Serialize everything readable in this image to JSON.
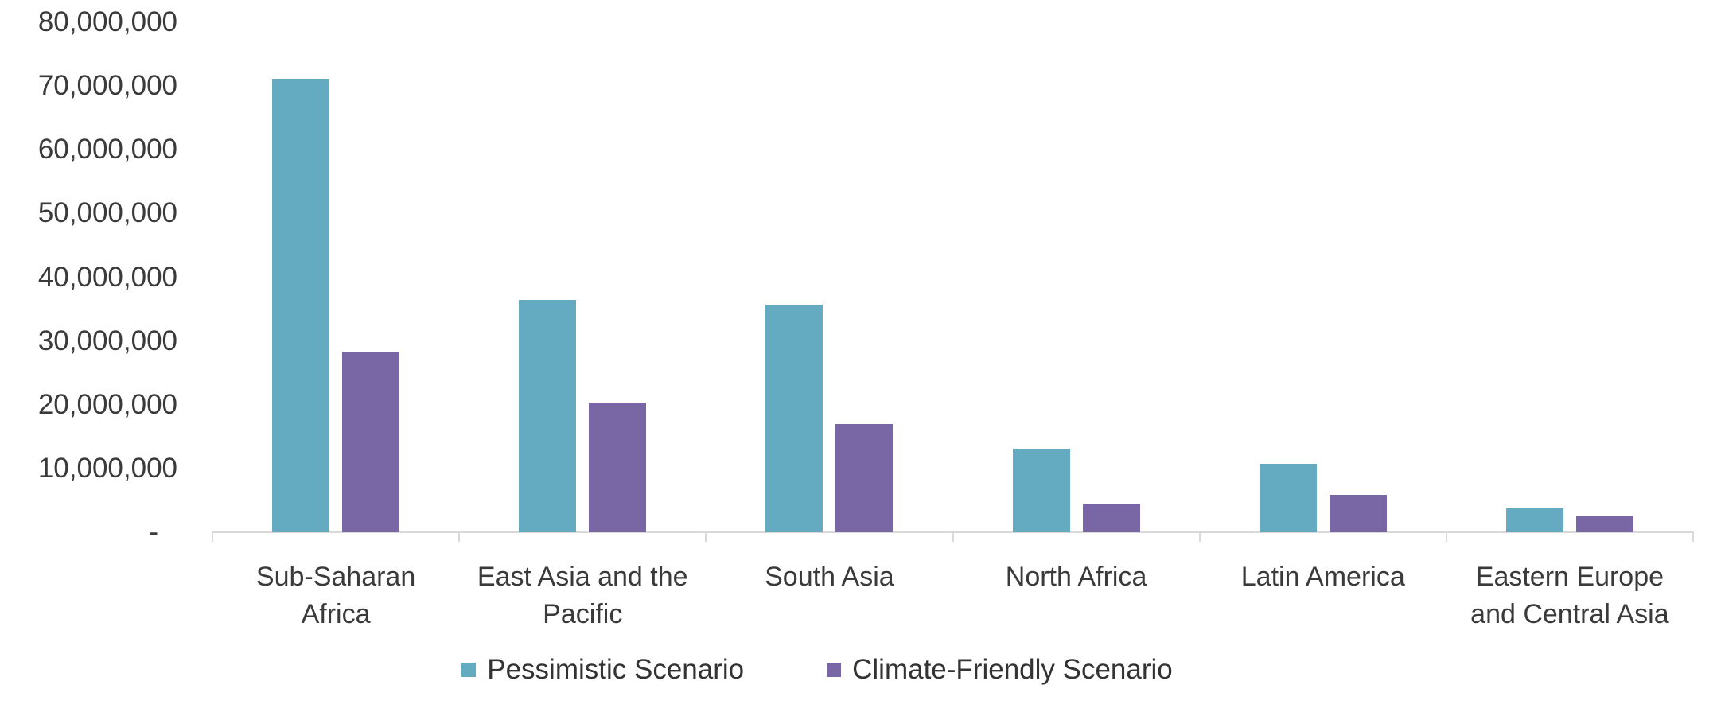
{
  "chart_data": {
    "type": "bar",
    "categories": [
      "Sub-Saharan Africa",
      "East Asia and the Pacific",
      "South Asia",
      "North Africa",
      "Latin America",
      "Eastern Europe and Central Asia"
    ],
    "category_label_lines": [
      [
        "Sub-Saharan",
        "Africa"
      ],
      [
        "East Asia and the",
        "Pacific"
      ],
      [
        "South Asia"
      ],
      [
        "North Africa"
      ],
      [
        "Latin America"
      ],
      [
        "Eastern Europe",
        "and Central Asia"
      ]
    ],
    "series": [
      {
        "name": "Pessimistic Scenario",
        "color": "#64aac0",
        "values": [
          71100000,
          36400000,
          35700000,
          13100000,
          10700000,
          3800000
        ]
      },
      {
        "name": "Climate-Friendly Scenario",
        "color": "#7867a4",
        "values": [
          28300000,
          20400000,
          17000000,
          4500000,
          5900000,
          2600000
        ]
      }
    ],
    "xlabel": "",
    "ylabel": "",
    "ylim": [
      0,
      80000000
    ],
    "y_tick_interval": 10000000,
    "y_tick_labels_top_to_bottom": [
      "80,000,000",
      "70,000,000",
      "60,000,000",
      "50,000,000",
      "40,000,000",
      "30,000,000",
      "20,000,000",
      "10,000,000"
    ],
    "y_zero_label": "-",
    "grid": false,
    "legend_position": "bottom",
    "axis_line_color": "#d9d9d9",
    "text_color": "#3a3a3a"
  }
}
